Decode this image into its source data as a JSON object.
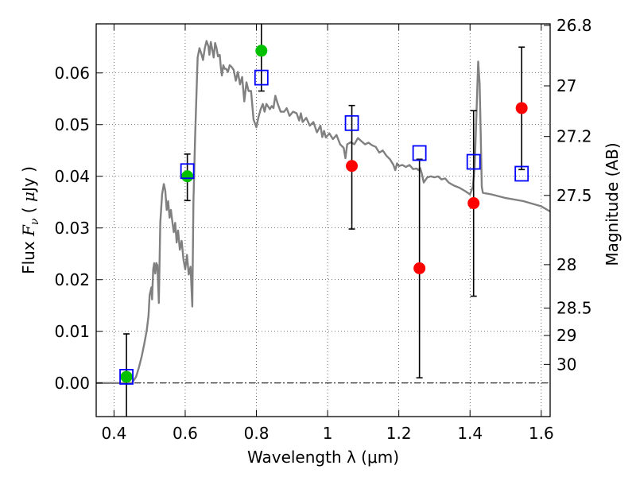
{
  "chart_data": {
    "type": "scatter",
    "xlabel": "Wavelength  λ (μm)",
    "ylabel_parts": {
      "prefix": "Flux ",
      "symbol": "F",
      "subscript": "ν",
      "unit_open": " ( ",
      "unit_mu": "μ",
      "unit_rest": "Jy )"
    },
    "y2label": "Magnitude (AB)",
    "xlim": [
      0.35,
      1.625
    ],
    "ylim": [
      -0.0065,
      0.0695
    ],
    "grid": true,
    "x_ticks": [
      {
        "value": 0.4,
        "label": "0.4"
      },
      {
        "value": 0.6,
        "label": "0.6"
      },
      {
        "value": 0.8,
        "label": "0.8"
      },
      {
        "value": 1.0,
        "label": "1"
      },
      {
        "value": 1.2,
        "label": "1.2"
      },
      {
        "value": 1.4,
        "label": "1.4"
      },
      {
        "value": 1.6,
        "label": "1.6"
      }
    ],
    "y_ticks": [
      {
        "value": 0.0,
        "label": "0.00"
      },
      {
        "value": 0.01,
        "label": "0.01"
      },
      {
        "value": 0.02,
        "label": "0.02"
      },
      {
        "value": 0.03,
        "label": "0.03"
      },
      {
        "value": 0.04,
        "label": "0.04"
      },
      {
        "value": 0.05,
        "label": "0.05"
      },
      {
        "value": 0.06,
        "label": "0.06"
      }
    ],
    "y2_ticks": [
      {
        "flux": 0.0692,
        "label": "26.8"
      },
      {
        "flux": 0.0575,
        "label": "27"
      },
      {
        "flux": 0.0477,
        "label": "27.2"
      },
      {
        "flux": 0.0363,
        "label": "27.5"
      },
      {
        "flux": 0.0229,
        "label": "28"
      },
      {
        "flux": 0.0145,
        "label": "28.5"
      },
      {
        "flux": 0.0092,
        "label": "29"
      },
      {
        "flux": 0.0036,
        "label": "30"
      }
    ],
    "model_sed": {
      "color": "#808080",
      "points": [
        [
          0.35,
          0.0
        ],
        [
          0.45,
          0.0
        ],
        [
          0.462,
          0.0012
        ],
        [
          0.47,
          0.003
        ],
        [
          0.478,
          0.0052
        ],
        [
          0.485,
          0.0076
        ],
        [
          0.492,
          0.0102
        ],
        [
          0.497,
          0.013
        ],
        [
          0.5,
          0.017
        ],
        [
          0.505,
          0.0185
        ],
        [
          0.507,
          0.0162
        ],
        [
          0.51,
          0.022
        ],
        [
          0.513,
          0.0232
        ],
        [
          0.516,
          0.0212
        ],
        [
          0.519,
          0.0232
        ],
        [
          0.522,
          0.0228
        ],
        [
          0.526,
          0.0155
        ],
        [
          0.53,
          0.031
        ],
        [
          0.535,
          0.0365
        ],
        [
          0.54,
          0.0385
        ],
        [
          0.544,
          0.0372
        ],
        [
          0.548,
          0.0335
        ],
        [
          0.552,
          0.0352
        ],
        [
          0.556,
          0.032
        ],
        [
          0.56,
          0.0335
        ],
        [
          0.564,
          0.0312
        ],
        [
          0.568,
          0.0292
        ],
        [
          0.572,
          0.031
        ],
        [
          0.576,
          0.0272
        ],
        [
          0.58,
          0.0295
        ],
        [
          0.585,
          0.0258
        ],
        [
          0.59,
          0.0275
        ],
        [
          0.595,
          0.024
        ],
        [
          0.6,
          0.022
        ],
        [
          0.605,
          0.0248
        ],
        [
          0.61,
          0.021
        ],
        [
          0.615,
          0.0225
        ],
        [
          0.62,
          0.0148
        ],
        [
          0.623,
          0.035
        ],
        [
          0.628,
          0.048
        ],
        [
          0.635,
          0.063
        ],
        [
          0.64,
          0.0648
        ],
        [
          0.645,
          0.0638
        ],
        [
          0.65,
          0.0625
        ],
        [
          0.655,
          0.0648
        ],
        [
          0.66,
          0.0662
        ],
        [
          0.665,
          0.0652
        ],
        [
          0.668,
          0.0635
        ],
        [
          0.672,
          0.066
        ],
        [
          0.676,
          0.0645
        ],
        [
          0.68,
          0.063
        ],
        [
          0.684,
          0.0658
        ],
        [
          0.688,
          0.0648
        ],
        [
          0.692,
          0.0632
        ],
        [
          0.697,
          0.0635
        ],
        [
          0.7,
          0.0612
        ],
        [
          0.703,
          0.0595
        ],
        [
          0.707,
          0.0615
        ],
        [
          0.711,
          0.0608
        ],
        [
          0.715,
          0.0608
        ],
        [
          0.72,
          0.0602
        ],
        [
          0.725,
          0.0615
        ],
        [
          0.73,
          0.0612
        ],
        [
          0.736,
          0.0606
        ],
        [
          0.742,
          0.0585
        ],
        [
          0.748,
          0.0602
        ],
        [
          0.754,
          0.0578
        ],
        [
          0.76,
          0.0592
        ],
        [
          0.766,
          0.0545
        ],
        [
          0.772,
          0.0582
        ],
        [
          0.778,
          0.0565
        ],
        [
          0.785,
          0.0565
        ],
        [
          0.792,
          0.051
        ],
        [
          0.8,
          0.0495
        ],
        [
          0.806,
          0.0515
        ],
        [
          0.812,
          0.053
        ],
        [
          0.818,
          0.054
        ],
        [
          0.823,
          0.0525
        ],
        [
          0.828,
          0.054
        ],
        [
          0.833,
          0.0535
        ],
        [
          0.838,
          0.053
        ],
        [
          0.843,
          0.0536
        ],
        [
          0.848,
          0.0532
        ],
        [
          0.853,
          0.0556
        ],
        [
          0.86,
          0.054
        ],
        [
          0.868,
          0.0525
        ],
        [
          0.878,
          0.0525
        ],
        [
          0.885,
          0.0532
        ],
        [
          0.893,
          0.0517
        ],
        [
          0.903,
          0.0525
        ],
        [
          0.913,
          0.0522
        ],
        [
          0.92,
          0.0508
        ],
        [
          0.925,
          0.0522
        ],
        [
          0.93,
          0.0505
        ],
        [
          0.94,
          0.0513
        ],
        [
          0.95,
          0.0498
        ],
        [
          0.96,
          0.0505
        ],
        [
          0.97,
          0.0485
        ],
        [
          0.98,
          0.0498
        ],
        [
          0.985,
          0.0476
        ],
        [
          0.99,
          0.0488
        ],
        [
          0.995,
          0.0475
        ],
        [
          1.005,
          0.0483
        ],
        [
          1.015,
          0.0472
        ],
        [
          1.025,
          0.048
        ],
        [
          1.035,
          0.0462
        ],
        [
          1.045,
          0.0455
        ],
        [
          1.05,
          0.0435
        ],
        [
          1.055,
          0.0462
        ],
        [
          1.065,
          0.0466
        ],
        [
          1.075,
          0.0462
        ],
        [
          1.085,
          0.0474
        ],
        [
          1.095,
          0.0468
        ],
        [
          1.105,
          0.0462
        ],
        [
          1.115,
          0.0465
        ],
        [
          1.125,
          0.046
        ],
        [
          1.135,
          0.0457
        ],
        [
          1.145,
          0.0446
        ],
        [
          1.155,
          0.045
        ],
        [
          1.165,
          0.044
        ],
        [
          1.175,
          0.0433
        ],
        [
          1.185,
          0.0422
        ],
        [
          1.19,
          0.0412
        ],
        [
          1.195,
          0.0425
        ],
        [
          1.2,
          0.042
        ],
        [
          1.21,
          0.0422
        ],
        [
          1.22,
          0.0418
        ],
        [
          1.23,
          0.0422
        ],
        [
          1.24,
          0.0414
        ],
        [
          1.25,
          0.0415
        ],
        [
          1.255,
          0.0412
        ],
        [
          1.26,
          0.0416
        ],
        [
          1.265,
          0.0404
        ],
        [
          1.27,
          0.0388
        ],
        [
          1.28,
          0.0398
        ],
        [
          1.29,
          0.04
        ],
        [
          1.3,
          0.0398
        ],
        [
          1.31,
          0.04
        ],
        [
          1.32,
          0.0394
        ],
        [
          1.33,
          0.0396
        ],
        [
          1.34,
          0.0388
        ],
        [
          1.355,
          0.0382
        ],
        [
          1.37,
          0.0378
        ],
        [
          1.385,
          0.0372
        ],
        [
          1.4,
          0.0365
        ],
        [
          1.408,
          0.038
        ],
        [
          1.413,
          0.042
        ],
        [
          1.418,
          0.052
        ],
        [
          1.423,
          0.0622
        ],
        [
          1.427,
          0.058
        ],
        [
          1.43,
          0.048
        ],
        [
          1.433,
          0.038
        ],
        [
          1.436,
          0.0368
        ],
        [
          1.46,
          0.0365
        ],
        [
          1.5,
          0.0358
        ],
        [
          1.55,
          0.0352
        ],
        [
          1.6,
          0.0342
        ],
        [
          1.625,
          0.0332
        ]
      ]
    },
    "series": [
      {
        "marker": "open-square",
        "color": "#0000ff",
        "points": [
          {
            "x": 0.435,
            "y": 0.0012
          },
          {
            "x": 0.606,
            "y": 0.041
          },
          {
            "x": 0.814,
            "y": 0.0591
          },
          {
            "x": 1.068,
            "y": 0.0503
          },
          {
            "x": 1.258,
            "y": 0.0445
          },
          {
            "x": 1.41,
            "y": 0.0428
          },
          {
            "x": 1.545,
            "y": 0.0405
          }
        ]
      },
      {
        "marker": "filled-circle",
        "color": "#00c000",
        "points": [
          {
            "x": 0.435,
            "y": 0.0012,
            "yerr_low": -0.0065,
            "yerr_high": 0.0095
          },
          {
            "x": 0.606,
            "y": 0.04,
            "yerr_low": 0.0353,
            "yerr_high": 0.0443
          },
          {
            "x": 0.814,
            "y": 0.0643,
            "yerr_low": 0.0565,
            "yerr_high": 0.0695
          }
        ]
      },
      {
        "marker": "filled-circle",
        "color": "#ff0000",
        "points": [
          {
            "x": 1.068,
            "y": 0.042,
            "yerr_low": 0.0298,
            "yerr_high": 0.0537
          },
          {
            "x": 1.258,
            "y": 0.0222,
            "yerr_low": 0.001,
            "yerr_high": 0.0433
          },
          {
            "x": 1.41,
            "y": 0.0348,
            "yerr_low": 0.0168,
            "yerr_high": 0.0527
          },
          {
            "x": 1.545,
            "y": 0.0532,
            "yerr_low": 0.0413,
            "yerr_high": 0.065
          }
        ]
      }
    ]
  }
}
